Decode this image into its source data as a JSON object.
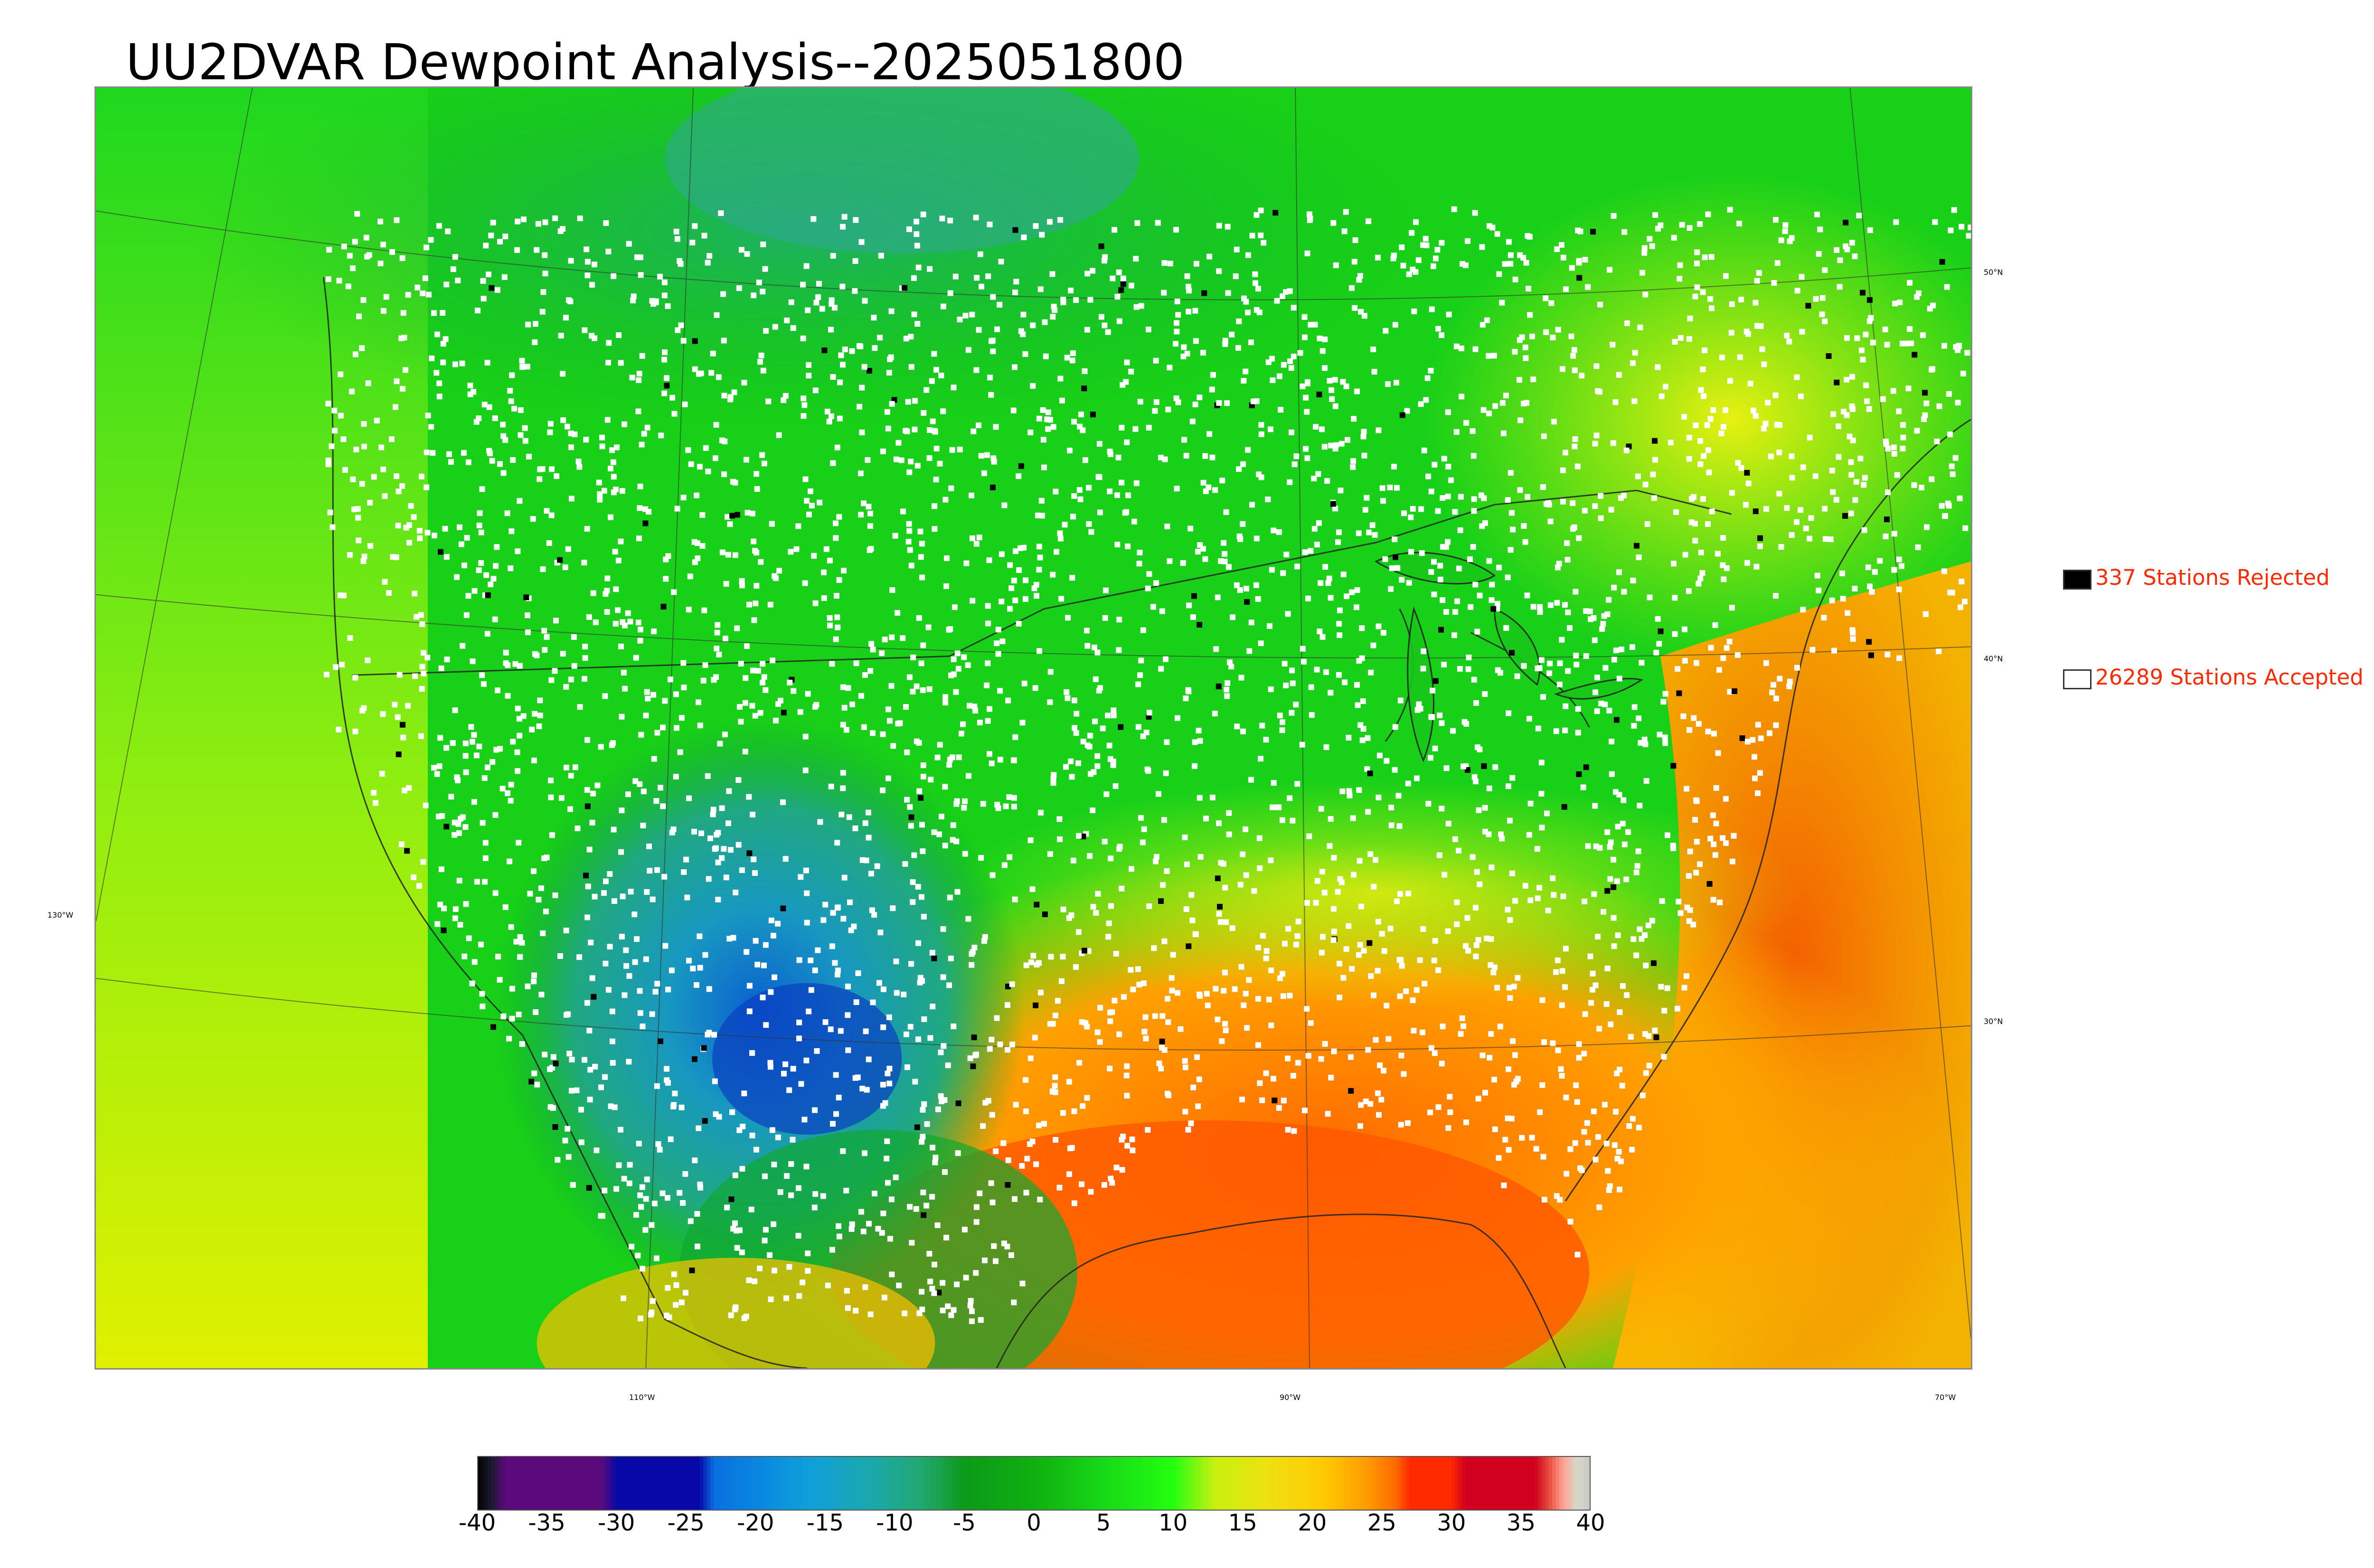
{
  "title": "UU2DVAR Dewpoint Analysis--2025051800",
  "legend": {
    "rejected": {
      "label": "337 Stations Rejected",
      "color": "#000000"
    },
    "accepted": {
      "label": "26289 Stations Accepted",
      "color": "#ffffff"
    }
  },
  "graticule": {
    "lat_labels": [
      "50°N",
      "40°N",
      "30°N"
    ],
    "lon_labels": [
      "130°W",
      "110°W",
      "90°W",
      "70°W"
    ]
  },
  "colorbar": {
    "ticks": [
      "-40",
      "-35",
      "-30",
      "-25",
      "-20",
      "-15",
      "-10",
      "-5",
      "0",
      "5",
      "10",
      "15",
      "20",
      "25",
      "30",
      "35",
      "40"
    ],
    "range": [
      -40,
      40
    ],
    "stops": [
      {
        "v": -40,
        "c": "#000000"
      },
      {
        "v": -39,
        "c": "#1a1a2e"
      },
      {
        "v": -38,
        "c": "#5a0a7a"
      },
      {
        "v": -31,
        "c": "#5a0a7a"
      },
      {
        "v": -30,
        "c": "#0808a8"
      },
      {
        "v": -24,
        "c": "#0808a8"
      },
      {
        "v": -23,
        "c": "#0a6fe0"
      },
      {
        "v": -19,
        "c": "#0a8de0"
      },
      {
        "v": -16,
        "c": "#10a0d8"
      },
      {
        "v": -12,
        "c": "#1aa8b0"
      },
      {
        "v": -8,
        "c": "#22a870"
      },
      {
        "v": -5,
        "c": "#0c9a1a"
      },
      {
        "v": 0,
        "c": "#10b010"
      },
      {
        "v": 5,
        "c": "#18d818"
      },
      {
        "v": 10,
        "c": "#22ff10"
      },
      {
        "v": 13,
        "c": "#c8f010"
      },
      {
        "v": 17,
        "c": "#f0e010"
      },
      {
        "v": 21,
        "c": "#ffc800"
      },
      {
        "v": 24,
        "c": "#ff9a00"
      },
      {
        "v": 26,
        "c": "#ff6a00"
      },
      {
        "v": 27,
        "c": "#ff2a00"
      },
      {
        "v": 30,
        "c": "#ff2a00"
      },
      {
        "v": 31,
        "c": "#d0001e"
      },
      {
        "v": 36,
        "c": "#d0001e"
      },
      {
        "v": 37,
        "c": "#e84a3a"
      },
      {
        "v": 38,
        "c": "#ffa090"
      },
      {
        "v": 39,
        "c": "#d8d8c8"
      },
      {
        "v": 40,
        "c": "#c8c8c8"
      }
    ]
  }
}
